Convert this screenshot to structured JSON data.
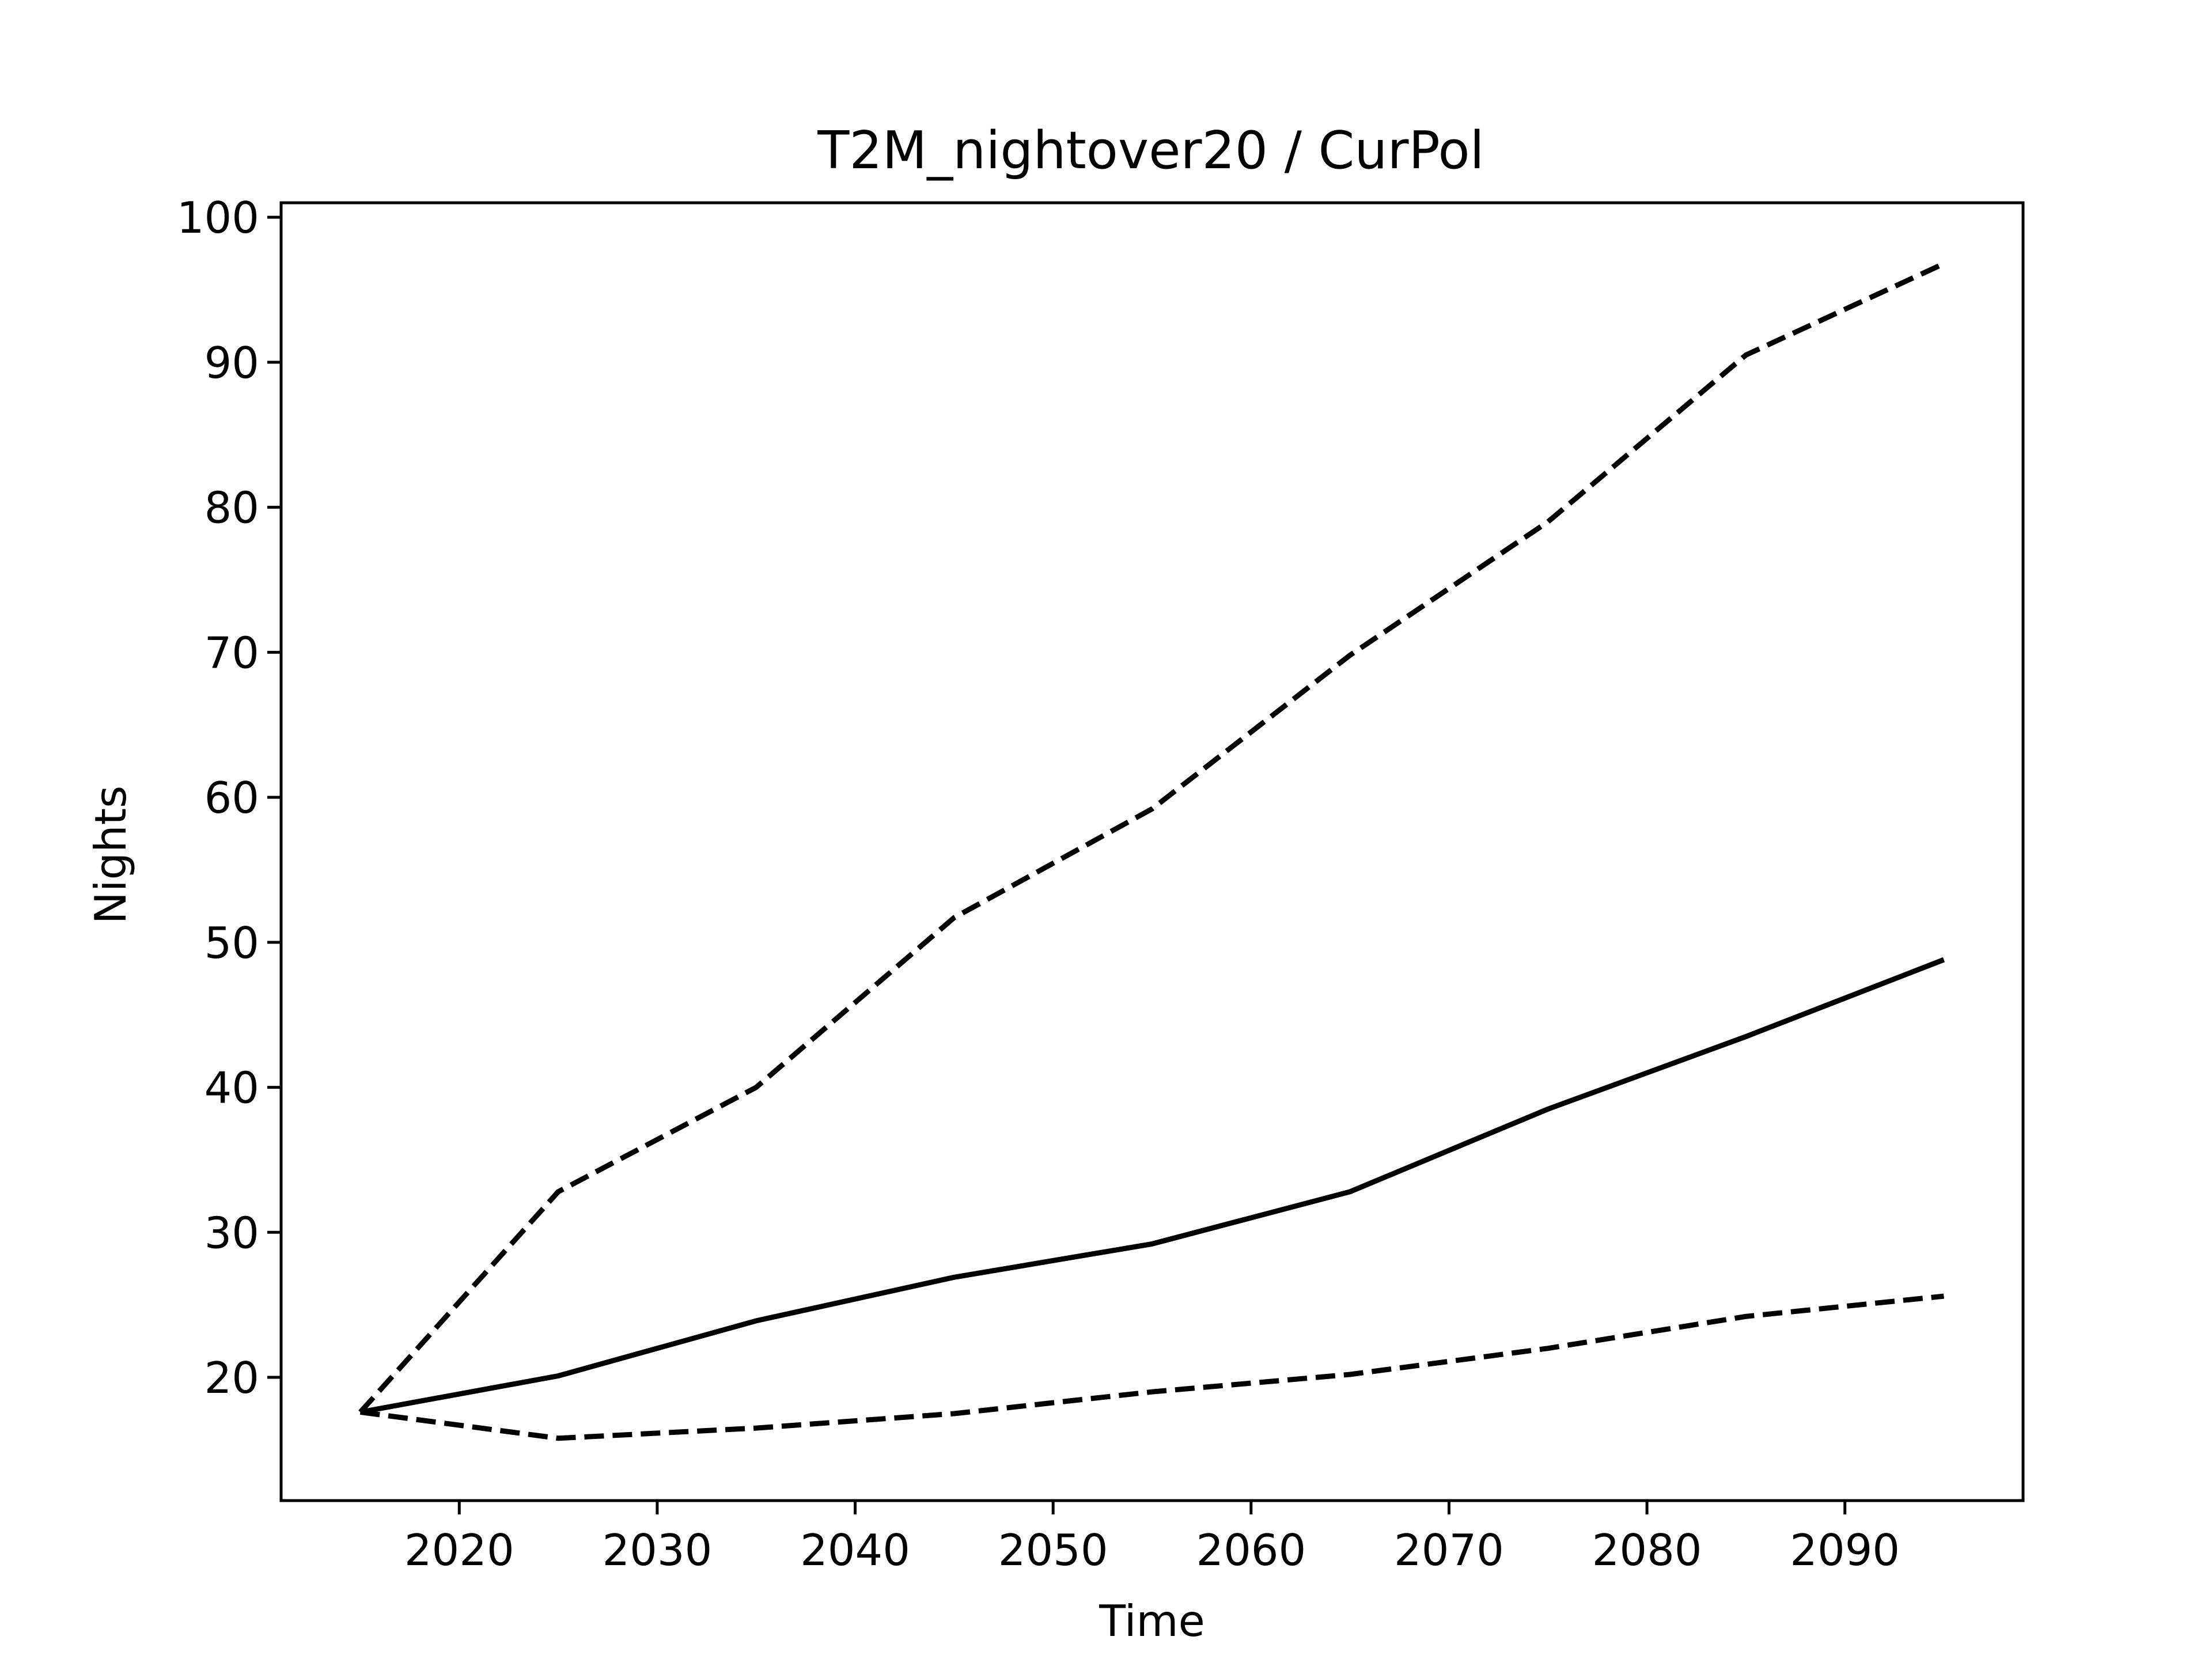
{
  "chart_data": {
    "type": "line",
    "title": "T2M_nightover20 / CurPol",
    "xlabel": "Time",
    "ylabel": "Nights",
    "xlim": [
      2011,
      2099
    ],
    "ylim": [
      11.5,
      101
    ],
    "xticks": [
      2020,
      2030,
      2040,
      2050,
      2060,
      2070,
      2080,
      2090
    ],
    "yticks": [
      20,
      30,
      40,
      50,
      60,
      70,
      80,
      90,
      100
    ],
    "grid": false,
    "x": [
      2015,
      2025,
      2035,
      2045,
      2055,
      2065,
      2075,
      2085,
      2095
    ],
    "series": [
      {
        "style": "dashed",
        "color": "#000000",
        "values": [
          17.6,
          32.8,
          40.0,
          51.7,
          59.2,
          69.8,
          79.0,
          90.5,
          96.8
        ]
      },
      {
        "style": "solid",
        "color": "#000000",
        "values": [
          17.6,
          20.1,
          23.9,
          26.9,
          29.2,
          32.8,
          38.5,
          43.5,
          48.8
        ]
      },
      {
        "style": "dashed",
        "color": "#000000",
        "values": [
          17.6,
          15.8,
          16.5,
          17.5,
          19.0,
          20.2,
          22.0,
          24.2,
          25.6
        ]
      }
    ]
  }
}
